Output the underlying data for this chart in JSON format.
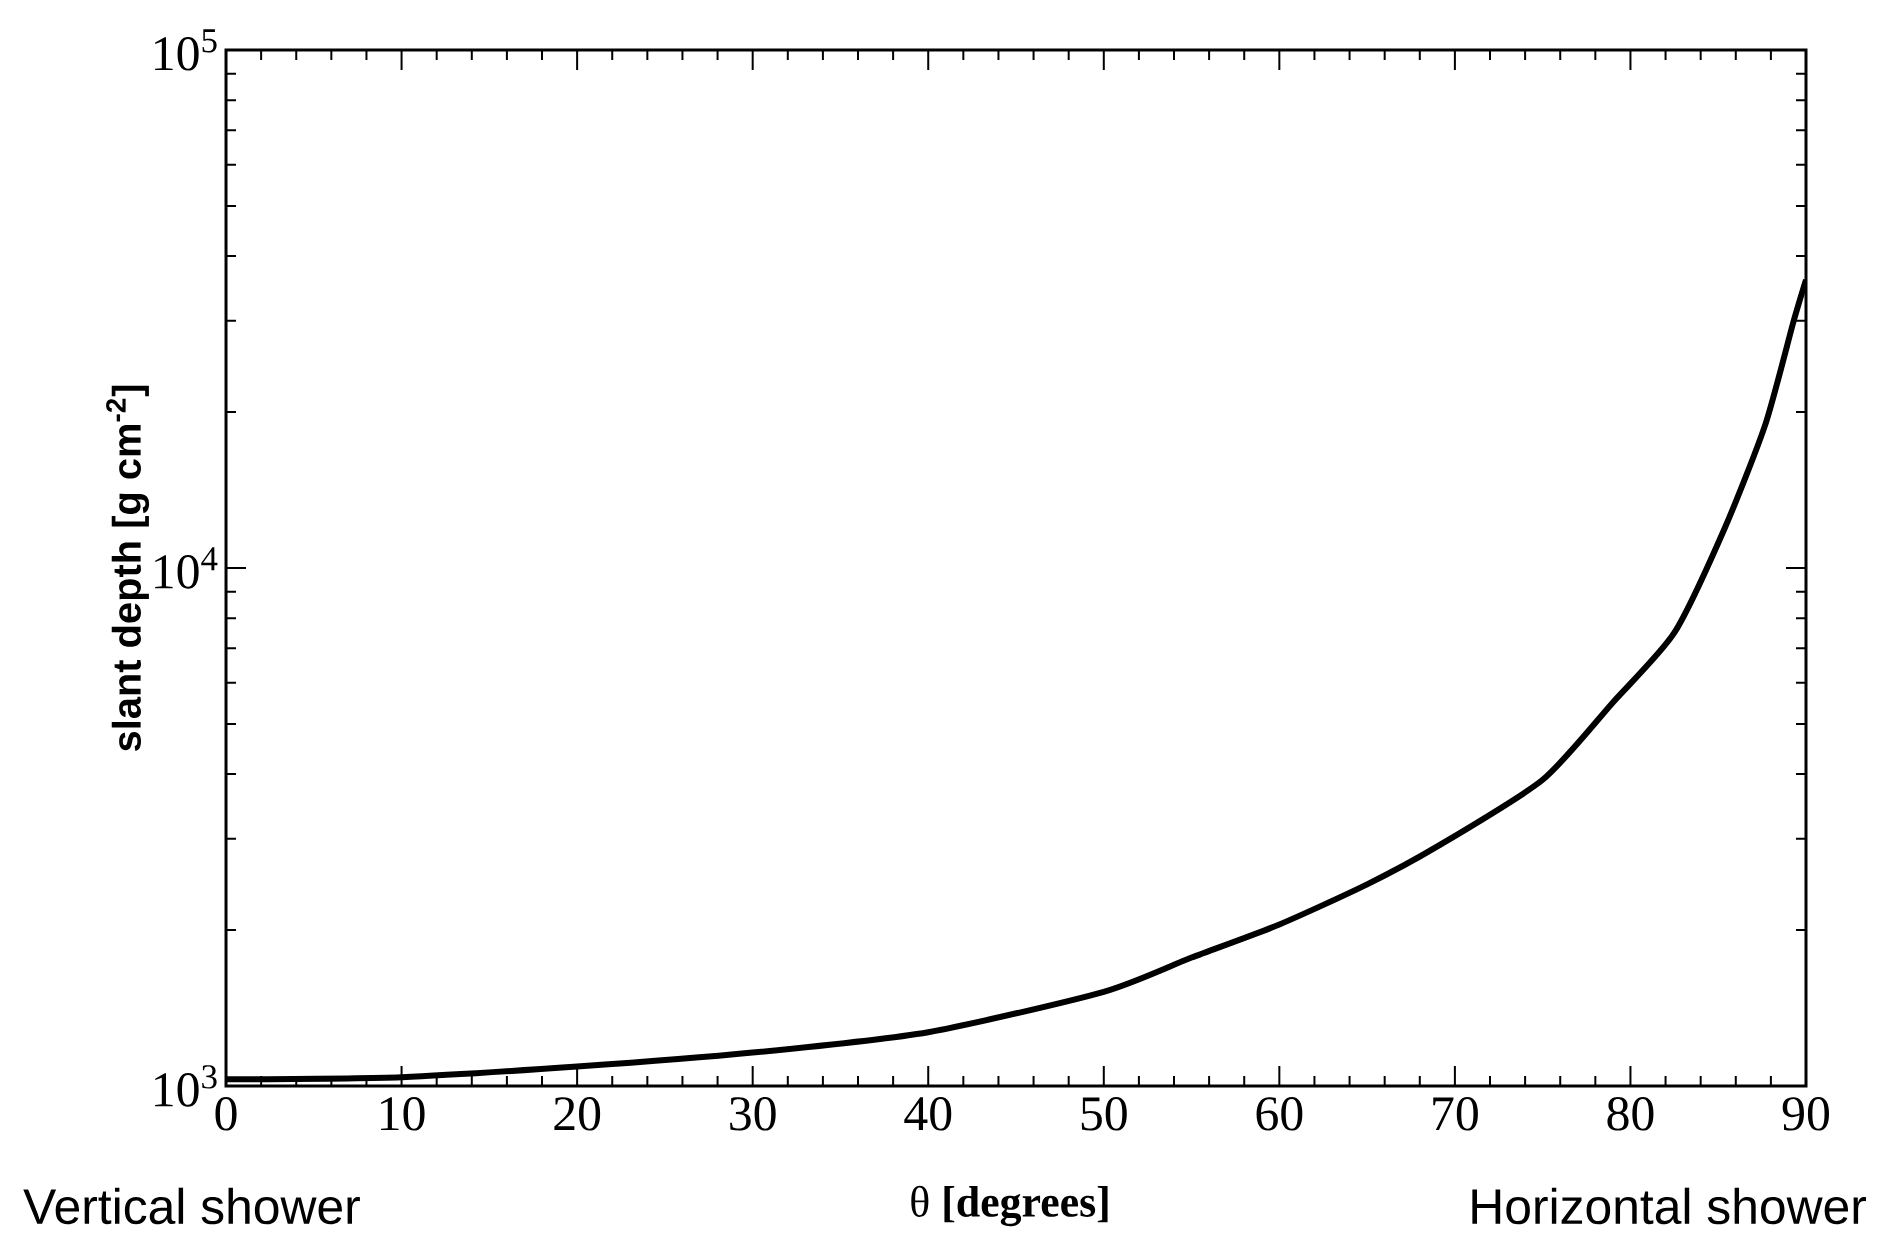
{
  "chart_data": {
    "type": "line",
    "xlabel": "θ **[degrees]**",
    "ylabel": "slant depth [g cm$^{-2}$]",
    "x": [
      0,
      10,
      20,
      30,
      40,
      50,
      55,
      60,
      65,
      69,
      75,
      79,
      82.5,
      85.4,
      87.7,
      89.3,
      90
    ],
    "series": [
      {
        "color": "#000000",
        "values": [
          1030,
          1040,
          1090,
          1160,
          1270,
          1520,
          1770,
          2050,
          2450,
          2900,
          3900,
          5500,
          7500,
          12000,
          19000,
          30000,
          36000
        ]
      }
    ],
    "xlim": [
      0,
      90
    ],
    "xticks": [
      0,
      10,
      20,
      30,
      40,
      50,
      60,
      70,
      80,
      90
    ],
    "ylim": [
      1000,
      100000
    ],
    "yticks": [
      {
        "value": 1000,
        "label": "10$^{3}$"
      },
      {
        "value": 10000,
        "label": "10$^{4}$"
      },
      {
        "value": 100000,
        "label": "10$^{5}$"
      }
    ],
    "log": "y",
    "grid": false,
    "marker": "none",
    "line_style": "solid",
    "annotations": [
      "Vertical shower",
      "Horizontal shower"
    ]
  }
}
